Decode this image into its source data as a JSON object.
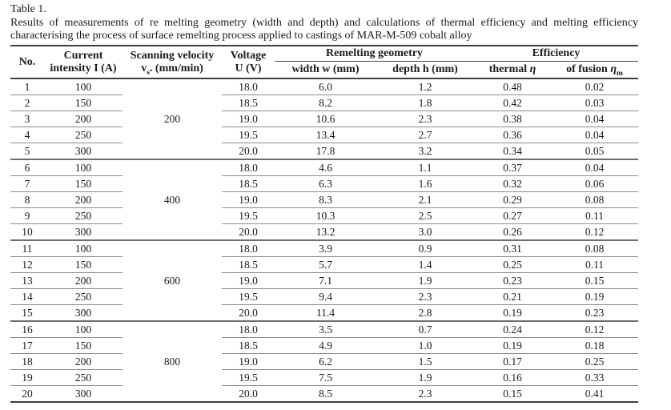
{
  "page": {
    "background_color": "#ffffff",
    "text_color": "#1b1b1b",
    "rule_dark_color": "#3f3f3f",
    "rule_medium_color": "#6e6e6e",
    "rule_light_color": "#8c8c8c"
  },
  "caption": {
    "label": "Table 1.",
    "line1": "Results of measurements of re melting geometry (width and depth) and calculations of thermal efficiency and melting efficiency",
    "line2": "characterising the process of surface remelting process applied to castings of MAR-M-509 cobalt alloy"
  },
  "table": {
    "header": {
      "no": "No.",
      "current_line1": "Current",
      "current_line2": "intensity I (A)",
      "scanning_line1": "Scanning velocity",
      "scanning_symbol": "v",
      "scanning_subscript": "s",
      "scanning_rest": ". (mm/min)",
      "voltage_line1": "Voltage",
      "voltage_line2": "U (V)",
      "group_geometry": "Remelting geometry",
      "group_efficiency": "Efficiency",
      "width": "width w (mm)",
      "depth": "depth h (mm)",
      "thermal_label": "thermal",
      "thermal_symbol": "η",
      "fusion_label": "of fusion",
      "fusion_symbol": "η",
      "fusion_subscript": "m"
    },
    "groups": [
      {
        "scanning_velocity": "200",
        "rows": [
          {
            "no": "1",
            "current": "100",
            "voltage": "18.0",
            "width": "6.0",
            "depth": "1.2",
            "thermal": "0.48",
            "fusion": "0.02"
          },
          {
            "no": "2",
            "current": "150",
            "voltage": "18.5",
            "width": "8.2",
            "depth": "1.8",
            "thermal": "0.42",
            "fusion": "0.03"
          },
          {
            "no": "3",
            "current": "200",
            "voltage": "19.0",
            "width": "10.6",
            "depth": "2.3",
            "thermal": "0.38",
            "fusion": "0.04"
          },
          {
            "no": "4",
            "current": "250",
            "voltage": "19.5",
            "width": "13.4",
            "depth": "2.7",
            "thermal": "0.36",
            "fusion": "0.04"
          },
          {
            "no": "5",
            "current": "300",
            "voltage": "20.0",
            "width": "17.8",
            "depth": "3.2",
            "thermal": "0.34",
            "fusion": "0.05"
          }
        ]
      },
      {
        "scanning_velocity": "400",
        "rows": [
          {
            "no": "6",
            "current": "100",
            "voltage": "18.0",
            "width": "4.6",
            "depth": "1.1",
            "thermal": "0.37",
            "fusion": "0.04"
          },
          {
            "no": "7",
            "current": "150",
            "voltage": "18.5",
            "width": "6.3",
            "depth": "1.6",
            "thermal": "0.32",
            "fusion": "0.06"
          },
          {
            "no": "8",
            "current": "200",
            "voltage": "19.0",
            "width": "8.3",
            "depth": "2.1",
            "thermal": "0.29",
            "fusion": "0.08"
          },
          {
            "no": "9",
            "current": "250",
            "voltage": "19.5",
            "width": "10.3",
            "depth": "2.5",
            "thermal": "0.27",
            "fusion": "0.11"
          },
          {
            "no": "10",
            "current": "300",
            "voltage": "20.0",
            "width": "13.2",
            "depth": "3.0",
            "thermal": "0.26",
            "fusion": "0.12"
          }
        ]
      },
      {
        "scanning_velocity": "600",
        "rows": [
          {
            "no": "11",
            "current": "100",
            "voltage": "18.0",
            "width": "3.9",
            "depth": "0.9",
            "thermal": "0.31",
            "fusion": "0.08"
          },
          {
            "no": "12",
            "current": "150",
            "voltage": "18.5",
            "width": "5.7",
            "depth": "1.4",
            "thermal": "0.25",
            "fusion": "0.11"
          },
          {
            "no": "13",
            "current": "200",
            "voltage": "19.0",
            "width": "7.1",
            "depth": "1.9",
            "thermal": "0.23",
            "fusion": "0.15"
          },
          {
            "no": "14",
            "current": "250",
            "voltage": "19.5",
            "width": "9.4",
            "depth": "2.3",
            "thermal": "0.21",
            "fusion": "0.19"
          },
          {
            "no": "15",
            "current": "300",
            "voltage": "20.0",
            "width": "11.4",
            "depth": "2.8",
            "thermal": "0.19",
            "fusion": "0.23"
          }
        ]
      },
      {
        "scanning_velocity": "800",
        "rows": [
          {
            "no": "16",
            "current": "100",
            "voltage": "18.0",
            "width": "3.5",
            "depth": "0.7",
            "thermal": "0.24",
            "fusion": "0.12"
          },
          {
            "no": "17",
            "current": "150",
            "voltage": "18.5",
            "width": "4.9",
            "depth": "1.0",
            "thermal": "0.19",
            "fusion": "0.18"
          },
          {
            "no": "18",
            "current": "200",
            "voltage": "19.0",
            "width": "6.2",
            "depth": "1.5",
            "thermal": "0.17",
            "fusion": "0.25"
          },
          {
            "no": "19",
            "current": "250",
            "voltage": "19.5",
            "width": "7.5",
            "depth": "1.9",
            "thermal": "0.16",
            "fusion": "0.33"
          },
          {
            "no": "20",
            "current": "300",
            "voltage": "20.0",
            "width": "8.5",
            "depth": "2.3",
            "thermal": "0.15",
            "fusion": "0.41"
          }
        ]
      }
    ]
  }
}
